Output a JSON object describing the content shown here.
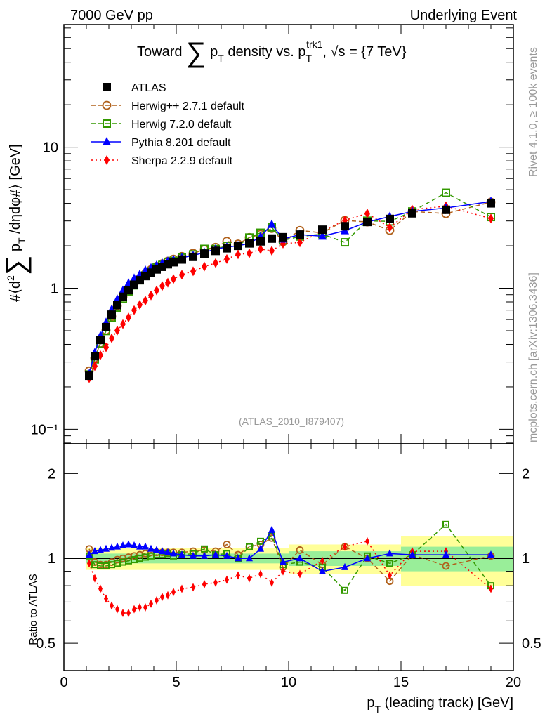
{
  "header": {
    "left": "7000 GeV pp",
    "right": "Underlying Event"
  },
  "side": {
    "rivet": "Rivet 4.1.0, ≥ 100k events",
    "mcplots": "mcplots.cern.ch [arXiv:1306.3436]"
  },
  "watermark": "(ATLAS_2010_I879407)",
  "title": {
    "a": "Toward ",
    "sum": "∑",
    "p": " p",
    "sub": "T",
    "b": " density vs. p",
    "sub2": "T",
    "sup2": "trk1",
    "c": ", √s = {7 TeV}"
  },
  "ylabel": {
    "a": "#⟨d",
    "sup": "2",
    "sum": "∑",
    "p": " p",
    "sub": "T",
    "b": " /dηdφ#⟩ [GeV]"
  },
  "ratio_ylabel": "Ratio to ATLAS",
  "xlabel": {
    "p": "p",
    "sub": "T",
    "rest": " (leading track) [GeV]"
  },
  "chart_data": {
    "type": "scatter",
    "xlabel": "pT (leading track) [GeV]",
    "ylabel": "#<d2 sum pT /deta dphi#> [GeV]",
    "xlim": [
      0,
      20
    ],
    "ylim": [
      0.079,
      74
    ],
    "yscale": "log",
    "ratio_ylim": [
      0.4,
      2.55
    ],
    "x_ticks": [
      "0",
      "5",
      "10",
      "15",
      "20"
    ],
    "y_ticks": [
      "10⁻¹",
      "1",
      "10"
    ],
    "ratio_ticks": [
      "0.5",
      "1",
      "2"
    ],
    "legend_position": "top-left",
    "x": [
      1.125,
      1.375,
      1.625,
      1.875,
      2.125,
      2.375,
      2.625,
      2.875,
      3.125,
      3.375,
      3.625,
      3.875,
      4.125,
      4.375,
      4.625,
      4.875,
      5.25,
      5.75,
      6.25,
      6.75,
      7.25,
      7.75,
      8.25,
      8.75,
      9.25,
      9.75,
      10.5,
      11.5,
      12.5,
      13.5,
      14.5,
      15.5,
      17,
      19
    ],
    "series": [
      {
        "name": "ATLAS",
        "color": "#000000",
        "marker": "square",
        "values": [
          0.24,
          0.33,
          0.43,
          0.53,
          0.65,
          0.76,
          0.87,
          0.97,
          1.06,
          1.14,
          1.22,
          1.29,
          1.36,
          1.42,
          1.48,
          1.53,
          1.6,
          1.67,
          1.76,
          1.84,
          1.92,
          2.0,
          2.08,
          2.15,
          2.25,
          2.3,
          2.4,
          2.6,
          2.75,
          2.95,
          3.1,
          3.4,
          3.6,
          4.0
        ]
      },
      {
        "name": "Herwig++ 2.7.1 default",
        "color": "#b0601a",
        "marker": "circle",
        "dash": "6,4",
        "ratio": [
          1.08,
          0.97,
          0.95,
          0.95,
          0.97,
          0.99,
          1.0,
          1.01,
          1.02,
          1.03,
          1.04,
          1.05,
          1.05,
          1.05,
          1.05,
          1.05,
          1.05,
          1.06,
          1.07,
          1.06,
          1.12,
          1.03,
          1.1,
          1.12,
          1.18,
          0.93,
          1.07,
          0.95,
          1.1,
          1.0,
          0.83,
          1.03,
          0.94,
          1.02
        ]
      },
      {
        "name": "Herwig 7.2.0 default",
        "color": "#339900",
        "marker": "square-open",
        "dash": "6,4",
        "ratio": [
          1.02,
          0.95,
          0.94,
          0.94,
          0.95,
          0.96,
          0.97,
          0.98,
          0.99,
          1.0,
          1.01,
          1.02,
          1.03,
          1.03,
          1.04,
          1.02,
          1.03,
          1.04,
          1.08,
          1.03,
          1.04,
          1.0,
          1.1,
          1.15,
          1.2,
          0.95,
          0.97,
          0.93,
          0.77,
          1.02,
          0.96,
          1.03,
          1.32,
          0.8
        ]
      },
      {
        "name": "Pythia 8.201 default",
        "color": "#0000ff",
        "marker": "triangle",
        "ratio": [
          1.03,
          1.06,
          1.07,
          1.08,
          1.09,
          1.1,
          1.11,
          1.12,
          1.11,
          1.1,
          1.1,
          1.08,
          1.07,
          1.06,
          1.05,
          1.04,
          1.03,
          1.02,
          1.02,
          1.03,
          1.02,
          1.0,
          1.0,
          1.08,
          1.26,
          0.97,
          1.0,
          0.9,
          0.93,
          1.0,
          1.04,
          1.03,
          1.03,
          1.03
        ]
      },
      {
        "name": "Sherpa 2.2.9 default",
        "color": "#ff0000",
        "marker": "diamond",
        "dash": "2,4",
        "ratio": [
          0.96,
          0.85,
          0.78,
          0.72,
          0.68,
          0.66,
          0.64,
          0.64,
          0.66,
          0.67,
          0.67,
          0.69,
          0.71,
          0.73,
          0.74,
          0.76,
          0.78,
          0.79,
          0.81,
          0.82,
          0.84,
          0.87,
          0.85,
          0.88,
          0.82,
          0.9,
          0.88,
          0.98,
          1.1,
          1.15,
          0.87,
          1.06,
          1.06,
          0.78
        ]
      }
    ],
    "bands": [
      {
        "from": 1.0,
        "to": 10.0,
        "inner": 0.04,
        "outer": 0.09
      },
      {
        "from": 10.0,
        "to": 15.0,
        "inner": 0.06,
        "outer": 0.12
      },
      {
        "from": 15.0,
        "to": 20.0,
        "inner": 0.1,
        "outer": 0.2
      }
    ]
  }
}
